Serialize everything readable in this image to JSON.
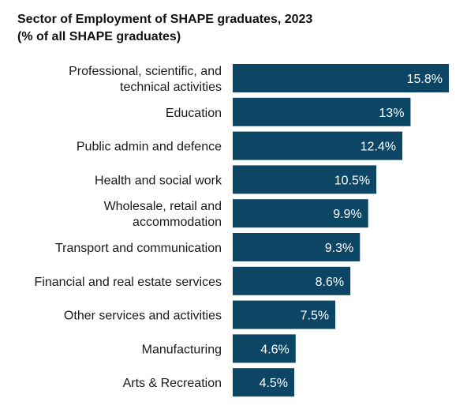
{
  "chart_data": {
    "type": "bar",
    "orientation": "horizontal",
    "title": "Sector of Employment of SHAPE graduates, 2023",
    "subtitle": "(% of all SHAPE graduates)",
    "categories": [
      "Professional, scientific, and technical activities",
      "Education",
      "Public admin and defence",
      "Health and social work",
      "Wholesale, retail and accommodation",
      "Transport and communication",
      "Financial and real estate services",
      "Other services and activities",
      "Manufacturing",
      "Arts & Recreation"
    ],
    "category_lines": [
      [
        "Professional, scientific, and",
        "technical activities"
      ],
      [
        "Education"
      ],
      [
        "Public admin and defence"
      ],
      [
        "Health and social work"
      ],
      [
        "Wholesale, retail and",
        "accommodation"
      ],
      [
        "Transport and communication"
      ],
      [
        "Financial and real estate services"
      ],
      [
        "Other services and activities"
      ],
      [
        "Manufacturing"
      ],
      [
        "Arts & Recreation"
      ]
    ],
    "values": [
      15.8,
      13,
      12.4,
      10.5,
      9.9,
      9.3,
      8.6,
      7.5,
      4.6,
      4.5
    ],
    "value_labels": [
      "15.8%",
      "13%",
      "12.4%",
      "10.5%",
      "9.9%",
      "9.3%",
      "8.6%",
      "7.5%",
      "4.6%",
      "4.5%"
    ],
    "bar_color": "#0d4564",
    "label_color": "#ffffff",
    "xlim": [
      0,
      15.8
    ],
    "grid": false,
    "legend": "none"
  }
}
